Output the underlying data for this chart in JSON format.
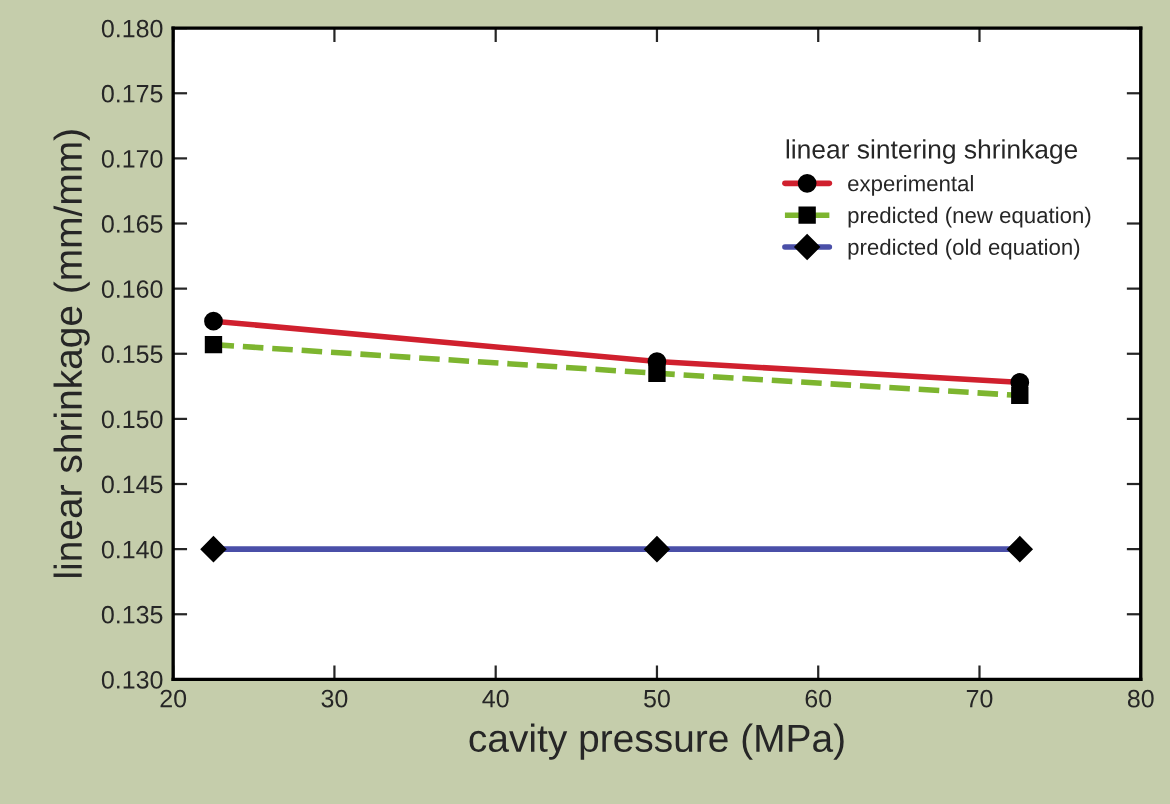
{
  "chart_data": {
    "type": "line",
    "xlabel": "cavity pressure (MPa)",
    "ylabel": "linear shrinkage (mm/mm)",
    "legend_title": "linear sintering shrinkage",
    "x": [
      22.5,
      50,
      72.5
    ],
    "series": [
      {
        "name": "experimental",
        "color": "#d0202e",
        "values": [
          0.1575,
          0.1544,
          0.1528
        ],
        "marker": "circle",
        "line_style": "solid"
      },
      {
        "name": "predicted (new equation)",
        "color": "#7db52f",
        "values": [
          0.1557,
          0.1535,
          0.1518
        ],
        "marker": "square",
        "line_style": "dashed"
      },
      {
        "name": "predicted (old equation)",
        "color": "#4a4fa8",
        "values": [
          0.14,
          0.14,
          0.14
        ],
        "marker": "diamond",
        "line_style": "solid"
      }
    ],
    "xlim": [
      20,
      80
    ],
    "xticks": [
      20,
      30,
      40,
      50,
      60,
      70,
      80
    ],
    "ylim": [
      0.13,
      0.18
    ],
    "yticks": [
      {
        "value": 0.13,
        "label": "0.130"
      },
      {
        "value": 0.135,
        "label": "0.135"
      },
      {
        "value": 0.14,
        "label": "0.140"
      },
      {
        "value": 0.145,
        "label": "0.145"
      },
      {
        "value": 0.15,
        "label": "0.150"
      },
      {
        "value": 0.155,
        "label": "0.155"
      },
      {
        "value": 0.16,
        "label": "0.160"
      },
      {
        "value": 0.165,
        "label": "0.165"
      },
      {
        "value": 0.17,
        "label": "0.170"
      },
      {
        "value": 0.175,
        "label": "0.175"
      },
      {
        "value": 0.18,
        "label": "0.180"
      }
    ],
    "grid": false,
    "legend": "top right"
  }
}
